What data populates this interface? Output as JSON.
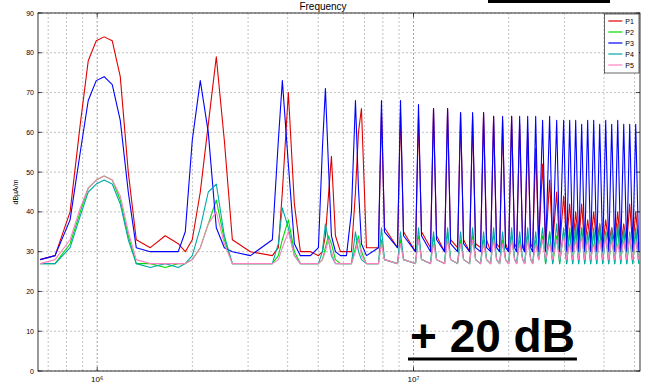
{
  "chart_data": {
    "type": "line",
    "title": "Frequency",
    "y_label": "dBµA/m",
    "annotations": [
      "+ 20 dB"
    ],
    "log": "x",
    "grid": true,
    "legend": "upper right",
    "xlim": [
      650000,
      52000000
    ],
    "xticks": [
      {
        "value": 1000000,
        "label": "10⁶"
      },
      {
        "value": 10000000,
        "label": "10⁷"
      }
    ],
    "ylim": [
      0,
      90
    ],
    "yticks": [
      0,
      10,
      20,
      30,
      40,
      50,
      60,
      70,
      80,
      90
    ],
    "x": [
      660000,
      736000,
      821000,
      884000,
      937000,
      993000,
      1052000,
      1116000,
      1183000,
      1254000,
      1329000,
      1472000,
      1641000,
      1804000,
      1899000,
      1998000,
      2118000,
      2245000,
      2380000,
      2523000,
      2675000,
      3050000,
      3579000,
      3739000,
      3849000,
      4021000,
      4201000,
      4389000,
      4722000,
      5005000,
      5152000,
      5266000,
      5383000,
      5502000,
      5665000,
      5875000,
      6138000,
      6365000,
      6554000,
      6698000,
      6846000,
      7100000,
      7748000,
      7920000,
      8095000,
      8901000,
      9098000,
      9299000,
      10146000,
      10370000,
      10600000,
      11318000,
      11569000,
      11825000,
      12537000,
      12815000,
      13099000,
      13781000,
      14086000,
      14398000,
      15042000,
      15375000,
      15715000,
      16293000,
      16654000,
      17022000,
      17527000,
      17915000,
      18311000,
      18716000,
      19126000,
      19549000,
      19982000,
      20425000,
      20876000,
      21183000,
      21652000,
      22131000,
      22459000,
      22956000,
      23464000,
      23807000,
      24334000,
      24872000,
      25593000,
      26159000,
      26936000,
      27542000,
      28353000,
      28973000,
      29833000,
      30493000,
      31167000,
      31856000,
      32560000,
      33280000,
      34008000,
      34760000,
      35529000,
      36314000,
      37117000,
      37938000,
      38777000,
      39634000,
      40510000,
      41406000,
      42321000,
      43257000,
      44213000,
      45191000,
      46190000,
      47211000,
      48245000,
      49312000,
      50402000,
      51517000
    ],
    "series": [
      {
        "name": "P1",
        "color": "#e00000",
        "values": [
          28,
          29,
          40,
          62,
          78,
          83,
          84,
          83,
          74,
          50,
          33,
          31,
          34,
          32,
          30,
          33,
          45,
          62,
          79,
          58,
          33,
          30,
          29,
          31,
          45,
          70,
          42,
          30,
          30,
          29,
          30,
          34,
          44,
          54,
          34,
          30,
          30,
          30,
          45,
          60,
          66,
          31,
          31,
          65,
          36,
          31,
          65,
          35,
          30,
          64,
          35,
          31,
          66,
          34,
          30,
          66,
          33,
          31,
          65,
          33,
          30,
          64,
          32,
          31,
          65,
          33,
          30,
          64,
          32,
          31,
          63,
          32,
          30,
          64,
          32,
          31,
          62,
          32,
          30,
          60,
          32,
          31,
          56,
          32,
          52,
          31,
          48,
          32,
          45,
          31,
          44,
          32,
          42,
          31,
          40,
          32,
          42,
          31,
          38,
          32,
          40,
          32,
          37,
          31,
          38,
          32,
          36,
          32,
          40,
          31,
          37,
          32,
          42,
          31,
          40,
          32
        ]
      },
      {
        "name": "P2",
        "color": "#00dd00",
        "values": [
          27,
          27,
          32,
          40,
          46,
          48,
          49,
          48,
          43,
          34,
          27,
          27,
          26,
          27,
          27,
          28,
          31,
          37,
          43,
          33,
          27,
          27,
          27,
          29,
          33,
          38,
          30,
          27,
          27,
          27,
          28,
          31,
          34,
          32,
          28,
          27,
          27,
          27,
          31,
          34,
          30,
          27,
          27,
          33,
          28,
          27,
          33,
          28,
          27,
          34,
          28,
          27,
          34,
          28,
          27,
          35,
          28,
          27,
          33,
          28,
          27,
          34,
          28,
          27,
          33,
          28,
          27,
          34,
          28,
          27,
          33,
          28,
          27,
          34,
          28,
          27,
          33,
          28,
          27,
          34,
          28,
          27,
          33,
          28,
          34,
          27,
          35,
          27,
          34,
          27,
          35,
          27,
          36,
          27,
          35,
          27,
          36,
          27,
          34,
          27,
          35,
          27,
          36,
          27,
          35,
          27,
          34,
          27,
          36,
          27,
          35,
          27,
          34,
          27,
          35,
          27
        ]
      },
      {
        "name": "P3",
        "color": "#0000ff",
        "values": [
          28,
          29,
          38,
          55,
          68,
          73,
          74,
          72,
          63,
          45,
          31,
          30,
          30,
          30,
          35,
          58,
          73,
          60,
          36,
          31,
          30,
          29,
          33,
          58,
          73,
          52,
          32,
          29,
          29,
          31,
          56,
          71,
          52,
          34,
          30,
          29,
          29,
          40,
          68,
          46,
          32,
          29,
          31,
          68,
          35,
          31,
          68,
          34,
          30,
          67,
          34,
          30,
          66,
          33,
          30,
          66,
          32,
          30,
          65,
          32,
          30,
          65,
          31,
          30,
          65,
          31,
          30,
          64,
          31,
          30,
          64,
          31,
          30,
          64,
          31,
          30,
          64,
          31,
          30,
          64,
          31,
          30,
          64,
          30,
          63,
          30,
          64,
          30,
          63,
          30,
          63,
          30,
          63,
          30,
          63,
          30,
          62,
          30,
          63,
          30,
          63,
          30,
          62,
          30,
          63,
          30,
          62,
          30,
          63,
          30,
          62,
          30,
          62,
          30,
          62,
          30
        ]
      },
      {
        "name": "P4",
        "color": "#00a8a8",
        "values": [
          27,
          27,
          31,
          39,
          45,
          47,
          48,
          47,
          42,
          33,
          27,
          26,
          27,
          26,
          27,
          29,
          36,
          45,
          47,
          34,
          27,
          27,
          27,
          32,
          41,
          36,
          29,
          27,
          27,
          27,
          30,
          37,
          33,
          29,
          27,
          27,
          27,
          27,
          35,
          30,
          28,
          27,
          27,
          36,
          28,
          27,
          35,
          28,
          27,
          36,
          28,
          27,
          35,
          28,
          27,
          36,
          28,
          27,
          35,
          28,
          27,
          36,
          28,
          27,
          35,
          28,
          27,
          36,
          28,
          27,
          35,
          28,
          27,
          36,
          28,
          27,
          35,
          28,
          27,
          36,
          28,
          27,
          35,
          28,
          36,
          27,
          35,
          27,
          37,
          27,
          36,
          27,
          35,
          27,
          37,
          27,
          36,
          27,
          35,
          27,
          36,
          27,
          37,
          27,
          35,
          27,
          36,
          27,
          37,
          27,
          36,
          27,
          35,
          27,
          36,
          27
        ]
      },
      {
        "name": "P5",
        "color": "#ff80c0",
        "values": [
          27,
          28,
          33,
          41,
          46,
          48,
          49,
          48,
          44,
          35,
          28,
          27,
          27,
          27,
          27,
          28,
          31,
          37,
          40,
          32,
          27,
          27,
          27,
          28,
          31,
          35,
          29,
          27,
          27,
          27,
          28,
          30,
          33,
          30,
          27,
          27,
          27,
          27,
          30,
          33,
          29,
          27,
          27,
          32,
          28,
          27,
          32,
          28,
          27,
          33,
          28,
          27,
          32,
          28,
          27,
          33,
          28,
          27,
          32,
          28,
          27,
          33,
          28,
          27,
          32,
          28,
          27,
          33,
          28,
          27,
          32,
          28,
          27,
          33,
          28,
          27,
          32,
          28,
          27,
          33,
          28,
          27,
          32,
          28,
          33,
          28,
          32,
          28,
          33,
          28,
          34,
          28,
          32,
          28,
          33,
          28,
          34,
          28,
          33,
          28,
          32,
          28,
          33,
          28,
          34,
          28,
          33,
          28,
          32,
          28,
          33,
          28,
          34,
          28,
          33,
          28
        ]
      }
    ]
  }
}
